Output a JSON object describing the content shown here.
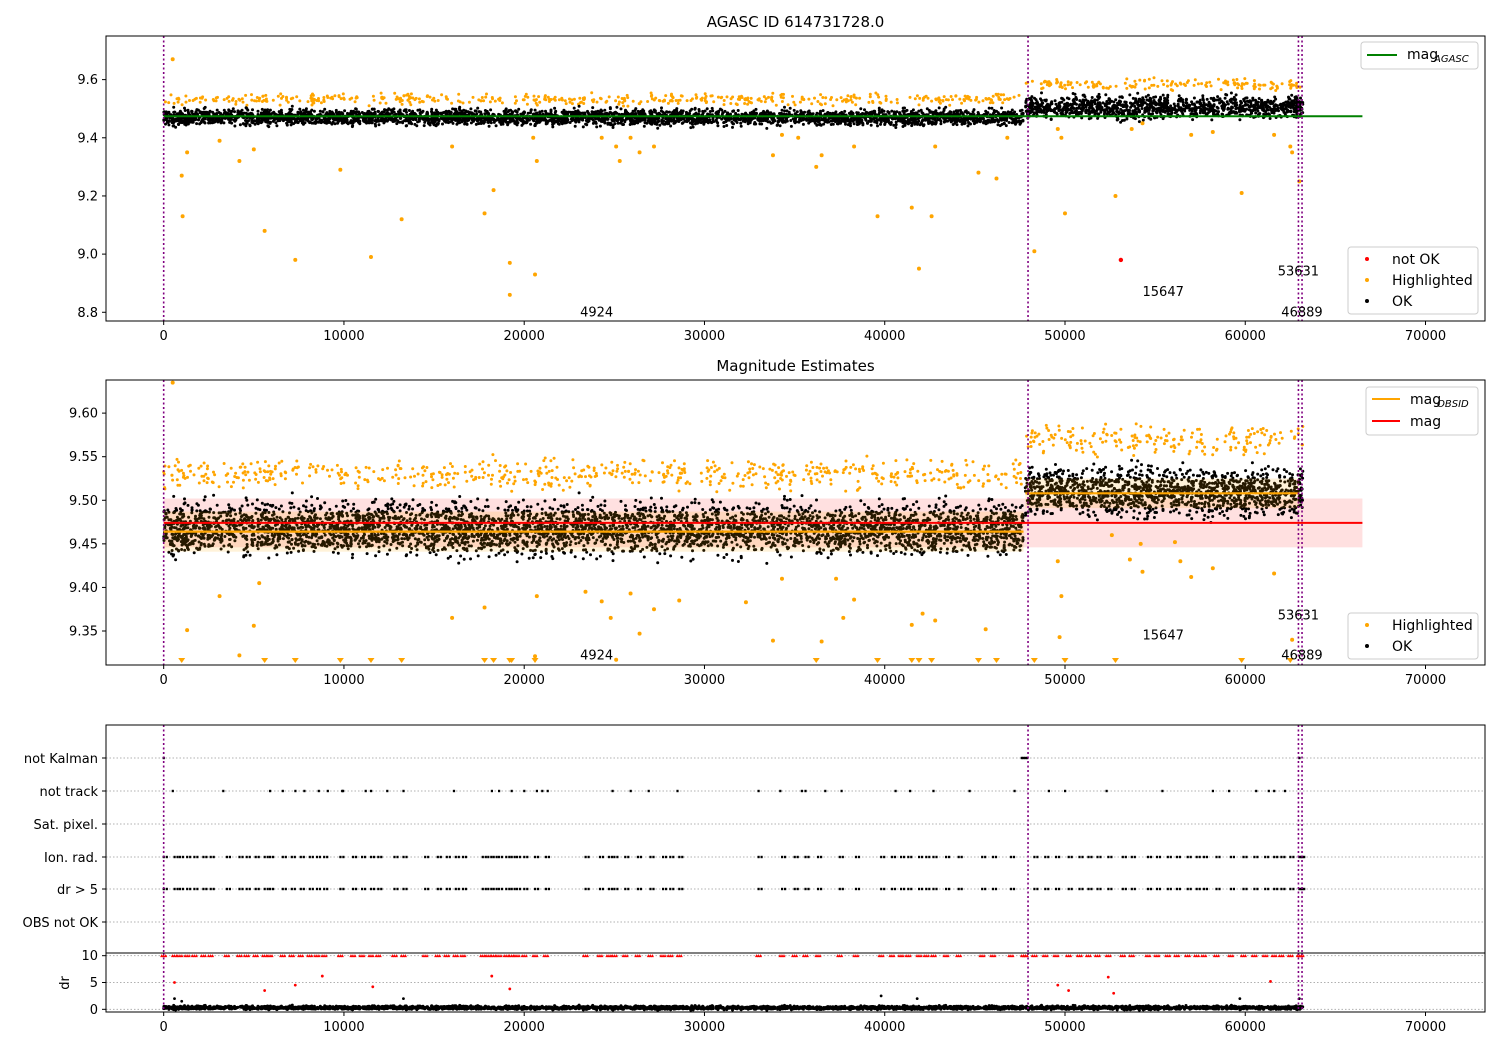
{
  "chart_data": [
    {
      "type": "scatter",
      "title": "AGASC ID 614731728.0",
      "xlim": [
        -3200,
        73300
      ],
      "ylim": [
        8.77,
        9.75
      ],
      "xticks": [
        0,
        10000,
        20000,
        30000,
        40000,
        50000,
        60000,
        70000
      ],
      "xtick_labels": [
        "0",
        "10000",
        "20000",
        "30000",
        "40000",
        "50000",
        "60000",
        "70000"
      ],
      "yticks": [
        8.8,
        9.0,
        9.2,
        9.4,
        9.6
      ],
      "ytick_labels": [
        "8.8",
        "9.0",
        "9.2",
        "9.4",
        "9.6"
      ],
      "obs_boundaries": [
        0,
        47950,
        62950,
        63150
      ],
      "agasc_mag": 9.474,
      "agasc_line_x": [
        0,
        66500
      ],
      "ok_bands": [
        {
          "x": [
            0,
            47700
          ],
          "y": [
            9.43,
            9.51
          ]
        },
        {
          "x": [
            47800,
            63200
          ],
          "y": [
            9.45,
            9.56
          ]
        }
      ],
      "highlighted_points": [
        [
          500,
          9.67
        ],
        [
          1000,
          9.27
        ],
        [
          1300,
          9.35
        ],
        [
          1050,
          9.13
        ],
        [
          3100,
          9.39
        ],
        [
          4200,
          9.32
        ],
        [
          5000,
          9.36
        ],
        [
          5600,
          9.08
        ],
        [
          7300,
          8.98
        ],
        [
          9800,
          9.29
        ],
        [
          11500,
          8.99
        ],
        [
          13200,
          9.12
        ],
        [
          16000,
          9.37
        ],
        [
          17800,
          9.14
        ],
        [
          18300,
          9.22
        ],
        [
          19200,
          8.97
        ],
        [
          19200,
          8.86
        ],
        [
          20600,
          8.93
        ],
        [
          20700,
          9.32
        ],
        [
          20500,
          9.4
        ],
        [
          24300,
          9.4
        ],
        [
          25100,
          9.37
        ],
        [
          25300,
          9.32
        ],
        [
          25900,
          9.4
        ],
        [
          26400,
          9.35
        ],
        [
          27200,
          9.37
        ],
        [
          33800,
          9.34
        ],
        [
          34300,
          9.41
        ],
        [
          35200,
          9.4
        ],
        [
          36200,
          9.3
        ],
        [
          36500,
          9.34
        ],
        [
          38300,
          9.37
        ],
        [
          39600,
          9.13
        ],
        [
          41500,
          9.16
        ],
        [
          41900,
          8.95
        ],
        [
          42600,
          9.13
        ],
        [
          42800,
          9.37
        ],
        [
          45200,
          9.28
        ],
        [
          46200,
          9.26
        ],
        [
          46800,
          9.4
        ],
        [
          48300,
          9.01
        ],
        [
          49600,
          9.43
        ],
        [
          49800,
          9.4
        ],
        [
          50000,
          9.14
        ],
        [
          52800,
          9.2
        ],
        [
          53700,
          9.43
        ],
        [
          54300,
          9.45
        ],
        [
          57000,
          9.41
        ],
        [
          58200,
          9.42
        ],
        [
          59800,
          9.21
        ],
        [
          61600,
          9.41
        ],
        [
          62500,
          9.37
        ],
        [
          62600,
          9.35
        ],
        [
          63000,
          9.25
        ]
      ],
      "not_ok_points": [
        [
          53100,
          8.98
        ]
      ],
      "annotations": [
        {
          "text": "4924",
          "x": 23100,
          "y": 8.8
        },
        {
          "text": "15647",
          "x": 54300,
          "y": 8.87
        },
        {
          "text": "53631",
          "x": 61800,
          "y": 8.94
        },
        {
          "text": "46889",
          "x": 62000,
          "y": 8.8
        }
      ],
      "legend_lines": [
        {
          "label": "mag",
          "sub": "AGASC",
          "color": "#008000"
        }
      ],
      "legend_points": [
        {
          "label": "not OK",
          "color": "#ff0000"
        },
        {
          "label": "Highlighted",
          "color": "#ffa500"
        },
        {
          "label": "OK",
          "color": "#000000"
        }
      ]
    },
    {
      "type": "scatter",
      "title": "Magnitude Estimates",
      "xlim": [
        -3200,
        73300
      ],
      "ylim": [
        9.311,
        9.638
      ],
      "xticks": [
        0,
        10000,
        20000,
        30000,
        40000,
        50000,
        60000,
        70000
      ],
      "xtick_labels": [
        "0",
        "10000",
        "20000",
        "30000",
        "40000",
        "50000",
        "60000",
        "70000"
      ],
      "yticks": [
        9.35,
        9.4,
        9.45,
        9.5,
        9.55,
        9.6
      ],
      "ytick_labels": [
        "9.35",
        "9.40",
        "9.45",
        "9.50",
        "9.55",
        "9.60"
      ],
      "obs_boundaries": [
        0,
        47950,
        62950,
        63150
      ],
      "mag": 9.474,
      "mag_band": [
        9.446,
        9.502
      ],
      "mag_line_x": [
        0,
        66500
      ],
      "obsid_segments": [
        {
          "x": [
            0,
            47700
          ],
          "mag": 9.464,
          "band": [
            9.441,
            9.487
          ]
        },
        {
          "x": [
            47800,
            63000
          ],
          "mag": 9.508,
          "band": [
            9.491,
            9.525
          ]
        }
      ],
      "ok_bands": [
        {
          "x": [
            0,
            47700
          ],
          "y": [
            9.425,
            9.51
          ]
        },
        {
          "x": [
            47800,
            63200
          ],
          "y": [
            9.47,
            9.55
          ]
        }
      ],
      "highlighted_points": [
        [
          500,
          9.635
        ],
        [
          4200,
          9.322
        ],
        [
          3100,
          9.39
        ],
        [
          5000,
          9.356
        ],
        [
          5300,
          9.405
        ],
        [
          1300,
          9.351
        ],
        [
          16000,
          9.365
        ],
        [
          17800,
          9.377
        ],
        [
          20600,
          9.321
        ],
        [
          20700,
          9.39
        ],
        [
          23400,
          9.395
        ],
        [
          24300,
          9.384
        ],
        [
          24800,
          9.365
        ],
        [
          25100,
          9.317
        ],
        [
          25900,
          9.393
        ],
        [
          26400,
          9.347
        ],
        [
          27200,
          9.375
        ],
        [
          28600,
          9.385
        ],
        [
          32300,
          9.383
        ],
        [
          33800,
          9.339
        ],
        [
          34300,
          9.41
        ],
        [
          36500,
          9.338
        ],
        [
          37300,
          9.41
        ],
        [
          37700,
          9.365
        ],
        [
          38300,
          9.386
        ],
        [
          41500,
          9.357
        ],
        [
          42100,
          9.37
        ],
        [
          42800,
          9.362
        ],
        [
          45600,
          9.352
        ],
        [
          49600,
          9.43
        ],
        [
          49800,
          9.39
        ],
        [
          49700,
          9.343
        ],
        [
          52600,
          9.46
        ],
        [
          53600,
          9.432
        ],
        [
          54200,
          9.45
        ],
        [
          54300,
          9.418
        ],
        [
          56100,
          9.452
        ],
        [
          56400,
          9.43
        ],
        [
          57000,
          9.412
        ],
        [
          58200,
          9.422
        ],
        [
          61600,
          9.416
        ],
        [
          62600,
          9.34
        ]
      ],
      "clipped_markers_x": [
        1000,
        5600,
        7300,
        9800,
        11500,
        13200,
        17800,
        18300,
        19200,
        19300,
        20600,
        36200,
        39600,
        41500,
        41900,
        42600,
        45200,
        46200,
        48300,
        50000,
        52800,
        59800,
        62500
      ],
      "annotations": [
        {
          "text": "4924",
          "x": 23100,
          "y": 9.322
        },
        {
          "text": "15647",
          "x": 54300,
          "y": 9.345
        },
        {
          "text": "53631",
          "x": 61800,
          "y": 9.368
        },
        {
          "text": "46889",
          "x": 62000,
          "y": 9.322
        }
      ],
      "legend_lines": [
        {
          "label": "mag",
          "sub": "OBSID",
          "color": "#ffa500"
        },
        {
          "label": "mag",
          "sub": "",
          "color": "#ff0000"
        }
      ],
      "legend_points": [
        {
          "label": "Highlighted",
          "color": "#ffa500"
        },
        {
          "label": "OK",
          "color": "#000000"
        }
      ]
    },
    {
      "type": "scatter",
      "title": "",
      "xlim": [
        -3200,
        73300
      ],
      "xticks": [
        0,
        10000,
        20000,
        30000,
        40000,
        50000,
        60000,
        70000
      ],
      "xtick_labels": [
        "0",
        "10000",
        "20000",
        "30000",
        "40000",
        "50000",
        "60000",
        "70000"
      ],
      "obs_boundaries": [
        0,
        47950,
        62950,
        63150
      ],
      "flag_rows": [
        "not Kalman",
        "not track",
        "Sat. pixel.",
        "Ion. rad.",
        "dr > 5",
        "OBS not OK"
      ],
      "flags": {
        "not Kalman": [
          0,
          47600,
          47700,
          47800,
          47900,
          63000
        ],
        "not track": [
          500,
          3300,
          5900,
          6600,
          7300,
          7800,
          8600,
          9100,
          9900,
          9950,
          11200,
          11500,
          12400,
          13300,
          16100,
          18200,
          18600,
          19300,
          20000,
          20700,
          21000,
          21300,
          24900,
          25900,
          26900,
          28500,
          33000,
          34200,
          35400,
          35600,
          36700,
          37600,
          40600,
          41400,
          42700,
          44700,
          47200,
          49100,
          50000,
          52300,
          55400,
          58200,
          59100,
          60600,
          61300,
          61600,
          62200
        ],
        "Sat. pixel.": [],
        "Ion. rad.": [
          0,
          600,
          900,
          1300,
          1700,
          2200,
          2600,
          3500,
          4200,
          4600,
          5100,
          5600,
          5900,
          6600,
          7100,
          7600,
          8100,
          8500,
          8900,
          9800,
          10500,
          11000,
          11500,
          11900,
          12800,
          13300,
          14500,
          15200,
          15700,
          16200,
          16600,
          17700,
          18000,
          18300,
          18600,
          19000,
          19300,
          19600,
          20000,
          20600,
          21200,
          23400,
          24200,
          24700,
          25000,
          25600,
          26300,
          27000,
          27700,
          28100,
          28600,
          33000,
          34300,
          35000,
          35600,
          36300,
          37500,
          38400,
          39800,
          40400,
          40900,
          41300,
          41900,
          42300,
          42700,
          43400,
          44100,
          45400,
          46000,
          47000,
          48300,
          48900,
          49500,
          50200,
          50800,
          51300,
          51800,
          52400,
          53200,
          53700,
          54600,
          55100,
          55700,
          56200,
          56800,
          57300,
          57700,
          58400,
          59200,
          59900,
          60500,
          61100,
          61600,
          62000,
          62500,
          63000,
          63100
        ],
        "dr > 5": [
          0,
          600,
          900,
          1300,
          1700,
          2200,
          2600,
          3500,
          4200,
          4600,
          5100,
          5600,
          5900,
          6600,
          7100,
          7600,
          8100,
          8500,
          8900,
          9800,
          10500,
          11000,
          11500,
          11900,
          12800,
          13300,
          14500,
          15200,
          15700,
          16200,
          16600,
          17700,
          18000,
          18300,
          18600,
          19000,
          19300,
          19600,
          20000,
          20600,
          21200,
          23400,
          24200,
          24700,
          25000,
          25600,
          26300,
          27000,
          27700,
          28100,
          28600,
          33000,
          34300,
          35000,
          35600,
          36300,
          37500,
          38400,
          39800,
          40400,
          40900,
          41300,
          41900,
          42300,
          42700,
          43400,
          44100,
          45400,
          46000,
          47000,
          48300,
          48900,
          49500,
          50200,
          50800,
          51300,
          51800,
          52400,
          53200,
          53700,
          54600,
          55100,
          55700,
          56200,
          56800,
          57300,
          57700,
          58400,
          59200,
          59900,
          60500,
          61100,
          61600,
          62000,
          62500,
          63000,
          63100
        ],
        "OBS not OK": []
      }
    },
    {
      "type": "scatter",
      "title": "",
      "ylabel": "dr",
      "xlim": [
        -3200,
        73300
      ],
      "ylim": [
        -0.5,
        10.5
      ],
      "xticks": [
        0,
        10000,
        20000,
        30000,
        40000,
        50000,
        60000,
        70000
      ],
      "xtick_labels": [
        "0",
        "10000",
        "20000",
        "30000",
        "40000",
        "50000",
        "60000",
        "70000"
      ],
      "yticks": [
        0,
        5,
        10
      ],
      "ytick_labels": [
        "0",
        "5",
        "10"
      ],
      "obs_boundaries": [
        0,
        47950,
        62950,
        63150
      ],
      "dr_clipped_x": [
        0,
        600,
        900,
        1300,
        1700,
        2200,
        2600,
        3500,
        4200,
        4600,
        5100,
        5600,
        5900,
        6600,
        7100,
        7600,
        8100,
        8500,
        8900,
        9800,
        10500,
        11000,
        11500,
        11900,
        12800,
        13300,
        14500,
        15200,
        15700,
        16200,
        16600,
        17700,
        18000,
        18300,
        18600,
        19000,
        19300,
        19600,
        20000,
        20600,
        21200,
        23400,
        24200,
        24700,
        25000,
        25600,
        26300,
        27000,
        27700,
        28100,
        28600,
        33000,
        34300,
        35000,
        35600,
        36300,
        37500,
        38400,
        39800,
        40400,
        40900,
        41300,
        41900,
        42300,
        42700,
        43400,
        44100,
        45400,
        46000,
        47000,
        47700,
        47800,
        48300,
        48900,
        49500,
        50200,
        50800,
        51300,
        51800,
        52400,
        53200,
        53700,
        54600,
        55100,
        55700,
        56200,
        56800,
        57300,
        57700,
        58400,
        59200,
        59900,
        60500,
        61100,
        61600,
        62000,
        62500,
        63000,
        63100
      ],
      "dr_outliers": [
        [
          600,
          5
        ],
        [
          5600,
          3.5
        ],
        [
          7300,
          4.5
        ],
        [
          8800,
          6.2
        ],
        [
          11600,
          4.2
        ],
        [
          18200,
          6.2
        ],
        [
          19200,
          3.8
        ],
        [
          49600,
          4.5
        ],
        [
          50200,
          3.5
        ],
        [
          52400,
          6
        ],
        [
          52700,
          3
        ],
        [
          61400,
          5.2
        ],
        [
          600,
          2
        ],
        [
          1000,
          1.5
        ],
        [
          13300,
          2
        ],
        [
          39800,
          2.5
        ],
        [
          41800,
          2
        ],
        [
          59700,
          2
        ],
        [
          63000,
          2
        ]
      ]
    }
  ]
}
